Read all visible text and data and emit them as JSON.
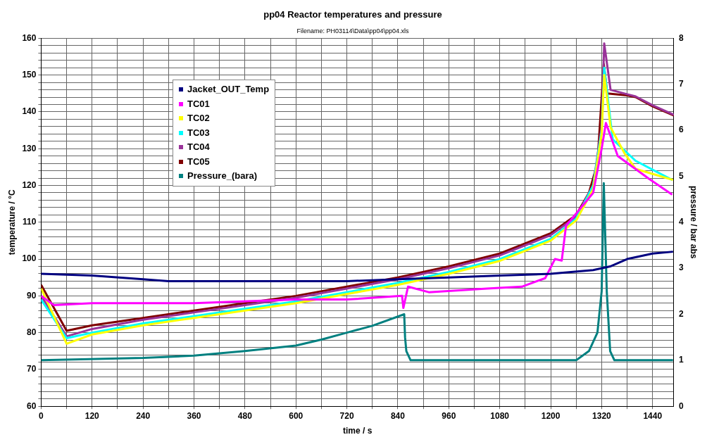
{
  "chart_data": {
    "type": "line",
    "title": "pp04 Reactor temperatures and pressure",
    "subtitle": "Filename: PH03114\\Data\\pp04\\pp04.xls",
    "xlabel": "time / s",
    "ylabel": "temperature / °C",
    "y2label": "pressure / bar abs",
    "legend": "top left",
    "grid": true,
    "marker": "none",
    "line_style": "solid",
    "xlim": [
      0,
      1490
    ],
    "ylim": [
      60,
      160
    ],
    "y2lim": [
      0,
      8
    ],
    "xticks": [
      0,
      {
        "value": 60,
        "label": null
      },
      120,
      {
        "value": 180,
        "label": null
      },
      240,
      {
        "value": 300,
        "label": null
      },
      360,
      {
        "value": 420,
        "label": null
      },
      480,
      {
        "value": 540,
        "label": null
      },
      600,
      {
        "value": 660,
        "label": null
      },
      720,
      {
        "value": 780,
        "label": null
      },
      840,
      {
        "value": 900,
        "label": null
      },
      960,
      {
        "value": 1020,
        "label": null
      },
      1080,
      {
        "value": 1140,
        "label": null
      },
      1200,
      {
        "value": 1260,
        "label": null
      },
      1320,
      {
        "value": 1380,
        "label": null
      },
      1440
    ],
    "yticks": [
      60,
      {
        "value": 62,
        "label": null
      },
      {
        "value": 64,
        "label": null
      },
      {
        "value": 66,
        "label": null
      },
      {
        "value": 68,
        "label": null
      },
      70,
      {
        "value": 72,
        "label": null
      },
      {
        "value": 74,
        "label": null
      },
      {
        "value": 76,
        "label": null
      },
      {
        "value": 78,
        "label": null
      },
      80,
      {
        "value": 82,
        "label": null
      },
      {
        "value": 84,
        "label": null
      },
      {
        "value": 86,
        "label": null
      },
      {
        "value": 88,
        "label": null
      },
      90,
      {
        "value": 92,
        "label": null
      },
      {
        "value": 94,
        "label": null
      },
      {
        "value": 96,
        "label": null
      },
      {
        "value": 98,
        "label": null
      },
      100,
      {
        "value": 102,
        "label": null
      },
      {
        "value": 104,
        "label": null
      },
      {
        "value": 106,
        "label": null
      },
      {
        "value": 108,
        "label": null
      },
      110,
      {
        "value": 112,
        "label": null
      },
      {
        "value": 114,
        "label": null
      },
      {
        "value": 116,
        "label": null
      },
      {
        "value": 118,
        "label": null
      },
      120,
      {
        "value": 122,
        "label": null
      },
      {
        "value": 124,
        "label": null
      },
      {
        "value": 126,
        "label": null
      },
      {
        "value": 128,
        "label": null
      },
      130,
      {
        "value": 132,
        "label": null
      },
      {
        "value": 134,
        "label": null
      },
      {
        "value": 136,
        "label": null
      },
      {
        "value": 138,
        "label": null
      },
      140,
      {
        "value": 142,
        "label": null
      },
      {
        "value": 144,
        "label": null
      },
      {
        "value": 146,
        "label": null
      },
      {
        "value": 148,
        "label": null
      },
      150,
      {
        "value": 152,
        "label": null
      },
      {
        "value": 154,
        "label": null
      },
      {
        "value": 156,
        "label": null
      },
      {
        "value": 158,
        "label": null
      },
      160
    ],
    "y2ticks": [
      0,
      1,
      2,
      3,
      4,
      5,
      6,
      7,
      8
    ],
    "series": [
      {
        "name": "Jacket_OUT_Temp",
        "color": "#000080",
        "x": [
          0,
          120,
          240,
          300,
          480,
          720,
          840,
          960,
          1080,
          1200,
          1300,
          1340,
          1380,
          1440,
          1488
        ],
        "values": [
          96,
          95.5,
          94.5,
          94,
          94,
          94,
          94.5,
          95,
          95.5,
          96,
          97,
          98,
          100,
          101.5,
          102
        ]
      },
      {
        "name": "TC01",
        "color": "#ff00ff",
        "x": [
          0,
          30,
          120,
          360,
          600,
          720,
          850,
          853,
          864,
          913,
          1050,
          1132,
          1187,
          1210,
          1226,
          1236,
          1300,
          1320,
          1330,
          1358,
          1429,
          1486
        ],
        "values": [
          90,
          87.5,
          88,
          88,
          89,
          89,
          90,
          86.7,
          92.5,
          91,
          92,
          92.5,
          94.8,
          100,
          99.6,
          109,
          118,
          130,
          137,
          128,
          122,
          117.5
        ]
      },
      {
        "name": "TC02",
        "color": "#ffff00",
        "x": [
          0,
          60,
          120,
          240,
          360,
          480,
          600,
          720,
          840,
          960,
          1080,
          1200,
          1260,
          1300,
          1320,
          1326,
          1341,
          1374,
          1400,
          1488
        ],
        "values": [
          92,
          77,
          79.5,
          82,
          84,
          86,
          88,
          90.5,
          93,
          96,
          99.5,
          105,
          110.5,
          119,
          134,
          150,
          135.8,
          128.7,
          124.5,
          121.5
        ]
      },
      {
        "name": "TC03",
        "color": "#00ffff",
        "x": [
          0,
          60,
          120,
          240,
          360,
          480,
          600,
          720,
          840,
          960,
          1080,
          1200,
          1260,
          1300,
          1320,
          1326,
          1346,
          1400,
          1486
        ],
        "values": [
          89,
          78.5,
          80,
          82.5,
          84.5,
          86.5,
          88.5,
          91,
          93.5,
          96.5,
          100,
          105.5,
          111,
          120,
          135,
          152,
          132.5,
          126.7,
          121.5
        ]
      },
      {
        "name": "TC04",
        "color": "#993399",
        "x": [
          0,
          60,
          120,
          240,
          360,
          480,
          600,
          720,
          840,
          960,
          1080,
          1200,
          1260,
          1300,
          1320,
          1326,
          1341,
          1380,
          1400,
          1440,
          1490
        ],
        "values": [
          90,
          79,
          81,
          83.5,
          85.5,
          87.5,
          89.5,
          92,
          94.5,
          97.5,
          101,
          106.5,
          111.5,
          120,
          136,
          158.6,
          146,
          144.8,
          144.2,
          141.8,
          139.2
        ]
      },
      {
        "name": "TC05",
        "color": "#800000",
        "x": [
          0,
          60,
          120,
          240,
          360,
          480,
          600,
          720,
          840,
          960,
          1080,
          1200,
          1260,
          1290,
          1310,
          1325,
          1333,
          1380,
          1400,
          1440,
          1490
        ],
        "values": [
          93,
          80.5,
          82,
          84,
          86,
          88,
          90,
          92.5,
          95,
          98,
          101.5,
          107,
          112,
          118,
          126,
          153,
          145,
          144.5,
          144,
          141.5,
          139
        ]
      },
      {
        "name": "Pressure_(bara)",
        "color": "#008080",
        "axis": "y2",
        "x": [
          0,
          240,
          360,
          480,
          600,
          660,
          720,
          780,
          855,
          857,
          860,
          870,
          1260,
          1290,
          1310,
          1320,
          1325,
          1332,
          1340,
          1350,
          1488
        ],
        "values": [
          1,
          1.05,
          1.1,
          1.2,
          1.32,
          1.45,
          1.6,
          1.75,
          2,
          1.5,
          1.2,
          1,
          1,
          1.2,
          1.6,
          2.5,
          4.85,
          2.5,
          1.2,
          1,
          1
        ]
      }
    ]
  }
}
